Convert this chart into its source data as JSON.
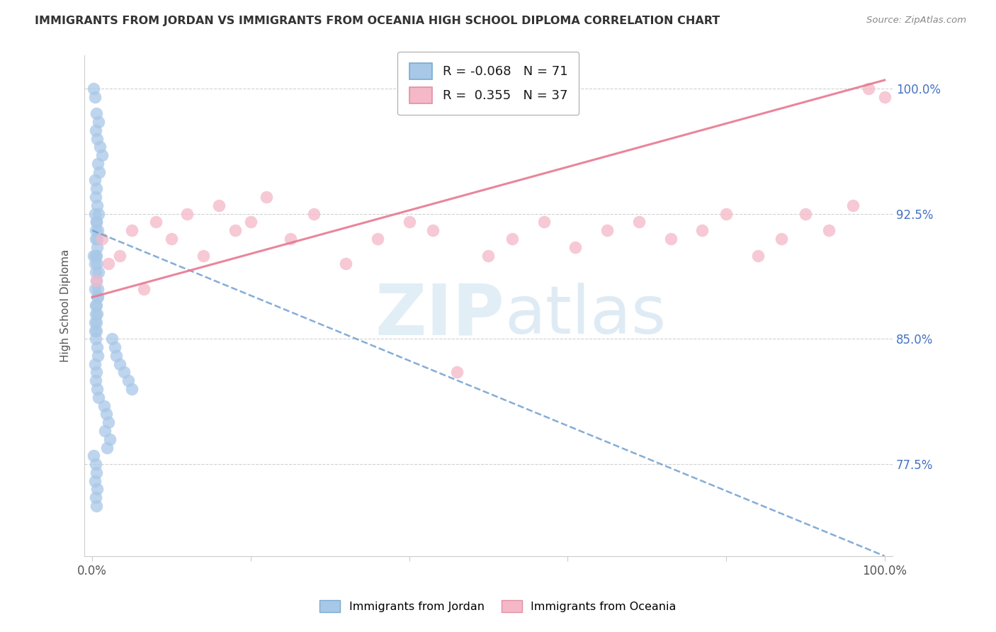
{
  "title": "IMMIGRANTS FROM JORDAN VS IMMIGRANTS FROM OCEANIA HIGH SCHOOL DIPLOMA CORRELATION CHART",
  "source": "Source: ZipAtlas.com",
  "ylabel": "High School Diploma",
  "ytick_vals": [
    77.5,
    85.0,
    92.5,
    100.0
  ],
  "ytick_labels": [
    "77.5%",
    "85.0%",
    "92.5%",
    "100.0%"
  ],
  "legend_jordan_r": "-0.068",
  "legend_jordan_n": "71",
  "legend_oceania_r": "0.355",
  "legend_oceania_n": "37",
  "jordan_scatter_color": "#a8c8e8",
  "oceania_scatter_color": "#f4b8c8",
  "jordan_line_color": "#6699cc",
  "oceania_line_color": "#e87890",
  "background_color": "#ffffff",
  "grid_color": "#cccccc",
  "jordan_scatter_x": [
    0.2,
    0.3,
    0.5,
    0.8,
    0.4,
    0.6,
    1.0,
    1.2,
    0.7,
    0.9,
    0.3,
    0.5,
    0.4,
    0.6,
    0.8,
    0.3,
    0.5,
    0.7,
    0.4,
    0.6,
    0.2,
    0.4,
    0.6,
    0.8,
    0.5,
    0.3,
    0.7,
    0.4,
    0.6,
    0.5,
    0.3,
    0.5,
    0.4,
    0.6,
    0.7,
    0.3,
    0.5,
    0.4,
    0.6,
    0.8,
    1.5,
    1.8,
    2.0,
    1.6,
    2.2,
    1.9,
    2.5,
    2.8,
    3.0,
    3.5,
    4.0,
    4.5,
    5.0,
    0.2,
    0.4,
    0.5,
    0.3,
    0.6,
    0.4,
    0.5,
    0.3,
    0.4,
    0.5,
    0.6,
    0.7,
    0.4,
    0.3,
    0.5,
    0.6,
    0.4,
    0.5
  ],
  "jordan_scatter_y": [
    100.0,
    99.5,
    98.5,
    98.0,
    97.5,
    97.0,
    96.5,
    96.0,
    95.5,
    95.0,
    94.5,
    94.0,
    93.5,
    93.0,
    92.5,
    92.5,
    92.0,
    91.5,
    91.0,
    90.5,
    90.0,
    90.0,
    89.5,
    89.0,
    88.5,
    88.0,
    87.5,
    87.0,
    86.5,
    86.0,
    85.5,
    85.5,
    85.0,
    84.5,
    84.0,
    83.5,
    83.0,
    82.5,
    82.0,
    81.5,
    81.0,
    80.5,
    80.0,
    79.5,
    79.0,
    78.5,
    85.0,
    84.5,
    84.0,
    83.5,
    83.0,
    82.5,
    82.0,
    78.0,
    77.5,
    77.0,
    76.5,
    76.0,
    75.5,
    75.0,
    86.0,
    86.5,
    87.0,
    87.5,
    88.0,
    89.0,
    89.5,
    90.0,
    91.0,
    91.5,
    92.0
  ],
  "oceania_scatter_x": [
    0.5,
    1.2,
    2.0,
    3.5,
    5.0,
    6.5,
    8.0,
    10.0,
    12.0,
    14.0,
    16.0,
    18.0,
    20.0,
    22.0,
    25.0,
    28.0,
    32.0,
    36.0,
    40.0,
    43.0,
    46.0,
    50.0,
    53.0,
    57.0,
    61.0,
    65.0,
    69.0,
    73.0,
    77.0,
    80.0,
    84.0,
    87.0,
    90.0,
    93.0,
    96.0,
    98.0,
    100.0
  ],
  "oceania_scatter_y": [
    88.5,
    91.0,
    89.5,
    90.0,
    91.5,
    88.0,
    92.0,
    91.0,
    92.5,
    90.0,
    93.0,
    91.5,
    92.0,
    93.5,
    91.0,
    92.5,
    89.5,
    91.0,
    92.0,
    91.5,
    83.0,
    90.0,
    91.0,
    92.0,
    90.5,
    91.5,
    92.0,
    91.0,
    91.5,
    92.5,
    90.0,
    91.0,
    92.5,
    91.5,
    93.0,
    100.0,
    99.5
  ],
  "jordan_trend_x0": 0.0,
  "jordan_trend_y0": 91.5,
  "jordan_trend_x1": 100.0,
  "jordan_trend_y1": 72.0,
  "oceania_trend_x0": 0.0,
  "oceania_trend_y0": 87.5,
  "oceania_trend_x1": 100.0,
  "oceania_trend_y1": 100.5,
  "xmin": 0.0,
  "xmax": 100.0,
  "ymin": 72.5,
  "ymax": 102.0
}
